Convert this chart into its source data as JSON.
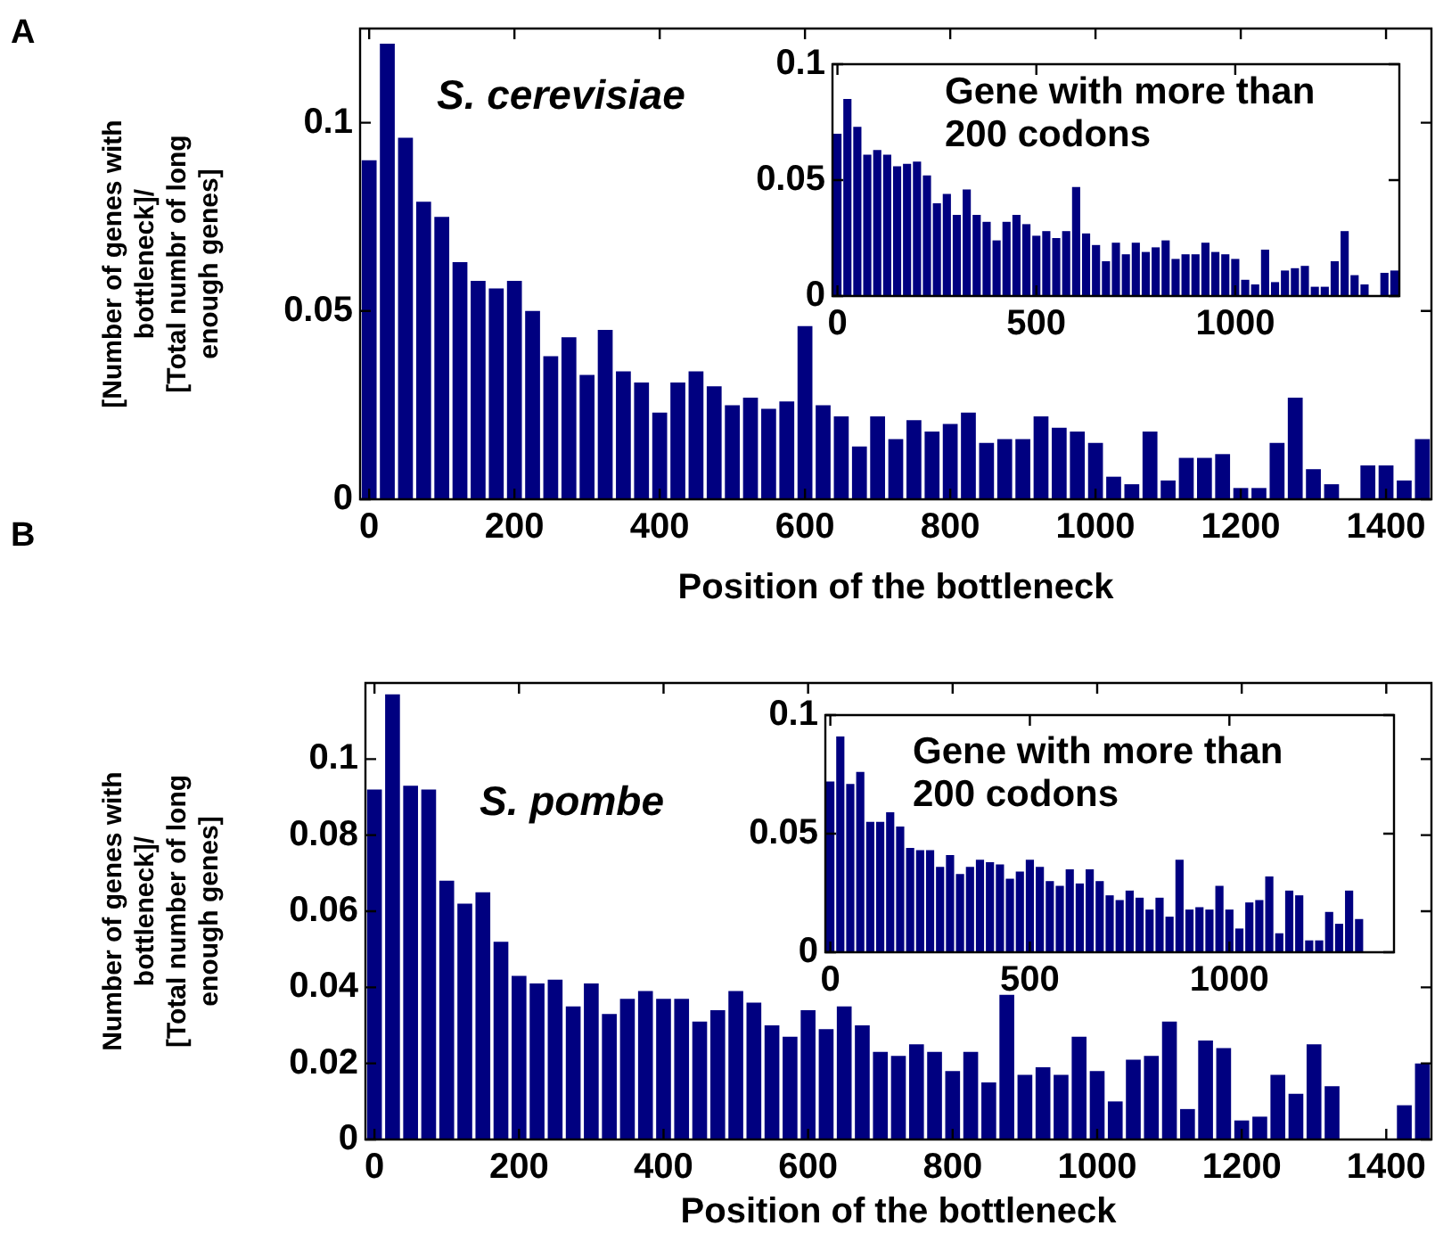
{
  "chart_data": [
    {
      "type": "histogram",
      "xlabel": "Position of the bottleneck",
      "ylabel": "[Number of genes with\nbottleneck]/\n[Total numbr of long\nenough genes]",
      "annotations": [
        "A",
        "S. cerevisiae"
      ],
      "color": "#000080",
      "bins": [
        -12.5,
        12.5,
        37.5,
        62.5,
        87.5,
        112.5,
        137.5,
        162.5,
        187.5,
        212.5,
        237.5,
        262.5,
        287.5,
        312.5,
        337.5,
        362.5,
        387.5,
        412.5,
        437.5,
        462.5,
        487.5,
        512.5,
        537.5,
        562.5,
        587.5,
        612.5,
        637.5,
        662.5,
        687.5,
        712.5,
        737.5,
        762.5,
        787.5,
        812.5,
        837.5,
        862.5,
        887.5,
        912.5,
        937.5,
        962.5,
        987.5,
        1012.5,
        1037.5,
        1062.5,
        1087.5,
        1112.5,
        1137.5,
        1162.5,
        1187.5,
        1212.5,
        1237.5,
        1262.5,
        1287.5,
        1312.5,
        1337.5,
        1362.5,
        1387.5,
        1412.5,
        1437.5,
        1462.5
      ],
      "values": [
        0.09,
        0.121,
        0.096,
        0.079,
        0.075,
        0.063,
        0.058,
        0.056,
        0.058,
        0.05,
        0.038,
        0.043,
        0.033,
        0.045,
        0.034,
        0.031,
        0.023,
        0.031,
        0.034,
        0.03,
        0.025,
        0.027,
        0.024,
        0.026,
        0.046,
        0.025,
        0.022,
        0.014,
        0.022,
        0.016,
        0.021,
        0.018,
        0.02,
        0.023,
        0.015,
        0.016,
        0.016,
        0.022,
        0.019,
        0.018,
        0.015,
        0.006,
        0.004,
        0.018,
        0.005,
        0.011,
        0.011,
        0.012,
        0.003,
        0.003,
        0.015,
        0.027,
        0.008,
        0.004,
        0,
        0.009,
        0.009,
        0.005,
        0.016
      ],
      "xlim": [
        -12.5,
        1462.5
      ],
      "xticks": [
        0,
        200,
        400,
        600,
        800,
        1000,
        1200,
        1400
      ],
      "ylim": [
        0,
        0.125
      ],
      "yticks": [
        0,
        0.05,
        0.1
      ]
    },
    {
      "type": "histogram",
      "annotations": [
        "Gene with more than 200 codons"
      ],
      "color": "#000080",
      "bins": [
        -12.5,
        12.5,
        37.5,
        62.5,
        87.5,
        112.5,
        137.5,
        162.5,
        187.5,
        212.5,
        237.5,
        262.5,
        287.5,
        312.5,
        337.5,
        362.5,
        387.5,
        412.5,
        437.5,
        462.5,
        487.5,
        512.5,
        537.5,
        562.5,
        587.5,
        612.5,
        637.5,
        662.5,
        687.5,
        712.5,
        737.5,
        762.5,
        787.5,
        812.5,
        837.5,
        862.5,
        887.5,
        912.5,
        937.5,
        962.5,
        987.5,
        1012.5,
        1037.5,
        1062.5,
        1087.5,
        1112.5,
        1137.5,
        1162.5,
        1187.5,
        1212.5,
        1237.5,
        1262.5,
        1287.5,
        1312.5,
        1337.5,
        1362.5,
        1387.5,
        1412.5
      ],
      "values": [
        0.07,
        0.085,
        0.073,
        0.061,
        0.063,
        0.061,
        0.056,
        0.057,
        0.058,
        0.052,
        0.04,
        0.044,
        0.035,
        0.046,
        0.035,
        0.032,
        0.024,
        0.032,
        0.035,
        0.031,
        0.026,
        0.028,
        0.025,
        0.028,
        0.047,
        0.027,
        0.022,
        0.015,
        0.023,
        0.018,
        0.023,
        0.019,
        0.021,
        0.024,
        0.016,
        0.018,
        0.018,
        0.023,
        0.019,
        0.018,
        0.016,
        0.007,
        0.005,
        0.02,
        0.006,
        0.011,
        0.012,
        0.013,
        0.004,
        0.004,
        0.015,
        0.028,
        0.009,
        0.005,
        0,
        0.01,
        0.011
      ],
      "xlim": [
        -12.5,
        1412.5
      ],
      "xticks": [
        0,
        500,
        1000
      ],
      "ylim": [
        0,
        0.1
      ],
      "yticks": [
        0,
        0.05,
        0.1
      ]
    },
    {
      "type": "histogram",
      "xlabel": "Position of the bottleneck",
      "ylabel": "Number of genes with\nbottleneck]/\n[Total number of long\nenough genes]",
      "annotations": [
        "B",
        "S. pombe"
      ],
      "color": "#000080",
      "bins": [
        -12.5,
        12.5,
        37.5,
        62.5,
        87.5,
        112.5,
        137.5,
        162.5,
        187.5,
        212.5,
        237.5,
        262.5,
        287.5,
        312.5,
        337.5,
        362.5,
        387.5,
        412.5,
        437.5,
        462.5,
        487.5,
        512.5,
        537.5,
        562.5,
        587.5,
        612.5,
        637.5,
        662.5,
        687.5,
        712.5,
        737.5,
        762.5,
        787.5,
        812.5,
        837.5,
        862.5,
        887.5,
        912.5,
        937.5,
        962.5,
        987.5,
        1012.5,
        1037.5,
        1062.5,
        1087.5,
        1112.5,
        1137.5,
        1162.5,
        1187.5,
        1212.5,
        1237.5,
        1262.5,
        1287.5,
        1312.5,
        1337.5,
        1362.5,
        1387.5,
        1412.5,
        1437.5,
        1462.5
      ],
      "values": [
        0.092,
        0.117,
        0.093,
        0.092,
        0.068,
        0.062,
        0.065,
        0.052,
        0.043,
        0.041,
        0.042,
        0.035,
        0.041,
        0.033,
        0.037,
        0.039,
        0.037,
        0.037,
        0.031,
        0.034,
        0.039,
        0.036,
        0.03,
        0.027,
        0.034,
        0.029,
        0.035,
        0.03,
        0.023,
        0.022,
        0.025,
        0.023,
        0.018,
        0.023,
        0.015,
        0.038,
        0.017,
        0.019,
        0.017,
        0.027,
        0.018,
        0.01,
        0.021,
        0.022,
        0.031,
        0.008,
        0.026,
        0.024,
        0.005,
        0.006,
        0.017,
        0.012,
        0.025,
        0.014,
        0,
        0,
        0,
        0.009,
        0.02
      ],
      "xlim": [
        -12.5,
        1462.5
      ],
      "xticks": [
        0,
        200,
        400,
        600,
        800,
        1000,
        1200,
        1400
      ],
      "ylim": [
        0,
        0.12
      ],
      "yticks": [
        0,
        0.02,
        0.04,
        0.06,
        0.08,
        0.1
      ]
    },
    {
      "type": "histogram",
      "annotations": [
        "Gene with more than 200 codons"
      ],
      "color": "#000080",
      "bins": [
        -12.5,
        12.5,
        37.5,
        62.5,
        87.5,
        112.5,
        137.5,
        162.5,
        187.5,
        212.5,
        237.5,
        262.5,
        287.5,
        312.5,
        337.5,
        362.5,
        387.5,
        412.5,
        437.5,
        462.5,
        487.5,
        512.5,
        537.5,
        562.5,
        587.5,
        612.5,
        637.5,
        662.5,
        687.5,
        712.5,
        737.5,
        762.5,
        787.5,
        812.5,
        837.5,
        862.5,
        887.5,
        912.5,
        937.5,
        962.5,
        987.5,
        1012.5,
        1037.5,
        1062.5,
        1087.5,
        1112.5,
        1137.5,
        1162.5,
        1187.5,
        1212.5,
        1237.5,
        1262.5,
        1287.5,
        1312.5,
        1337.5
      ],
      "values": [
        0.072,
        0.091,
        0.071,
        0.076,
        0.055,
        0.055,
        0.059,
        0.053,
        0.044,
        0.043,
        0.043,
        0.036,
        0.041,
        0.033,
        0.036,
        0.039,
        0.038,
        0.037,
        0.031,
        0.034,
        0.039,
        0.036,
        0.03,
        0.028,
        0.035,
        0.029,
        0.035,
        0.03,
        0.024,
        0.022,
        0.026,
        0.023,
        0.018,
        0.023,
        0.015,
        0.039,
        0.018,
        0.019,
        0.018,
        0.028,
        0.018,
        0.01,
        0.021,
        0.022,
        0.032,
        0.008,
        0.026,
        0.024,
        0.005,
        0.005,
        0.017,
        0.012,
        0.026,
        0.014
      ],
      "xlim": [
        -12.5,
        1412.5
      ],
      "xticks": [
        0,
        500,
        1000
      ],
      "ylim": [
        0,
        0.1
      ],
      "yticks": [
        0,
        0.05,
        0.1
      ]
    }
  ]
}
